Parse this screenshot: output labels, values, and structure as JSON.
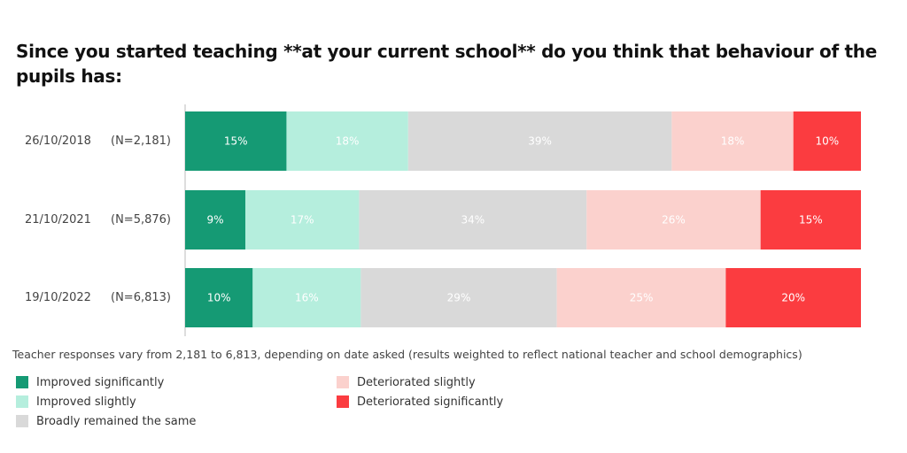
{
  "title": "Since you started teaching **at your current school** do you think that behaviour of the pupils has:",
  "note": "Teacher responses vary from 2,181 to 6,813, depending on date asked (results weighted to reflect national teacher and school demographics)",
  "chart_data": {
    "type": "bar",
    "orientation": "horizontal",
    "stacked": "100%",
    "categories": [
      "26/10/2018",
      "21/10/2021",
      "19/10/2022"
    ],
    "sample_sizes": [
      "(N=2,181)",
      "(N=5,876)",
      "(N=6,813)"
    ],
    "series": [
      {
        "name": "Improved significantly",
        "color": "#159a74",
        "label_color": "#ffffff",
        "values": [
          15,
          9,
          10
        ]
      },
      {
        "name": "Improved slightly",
        "color": "#b5eedd",
        "label_color": "#ffffff",
        "values": [
          18,
          17,
          16
        ]
      },
      {
        "name": "Broadly remained the same",
        "color": "#d9d9d9",
        "label_color": "#ffffff",
        "values": [
          39,
          34,
          29
        ]
      },
      {
        "name": "Deteriorated slightly",
        "color": "#fbd1cd",
        "label_color": "#ffffff",
        "values": [
          18,
          26,
          25
        ]
      },
      {
        "name": "Deteriorated significantly",
        "color": "#fb3c40",
        "label_color": "#ffffff",
        "values": [
          10,
          15,
          20
        ]
      }
    ],
    "value_suffix": "%",
    "legend_placement": "bottom"
  }
}
